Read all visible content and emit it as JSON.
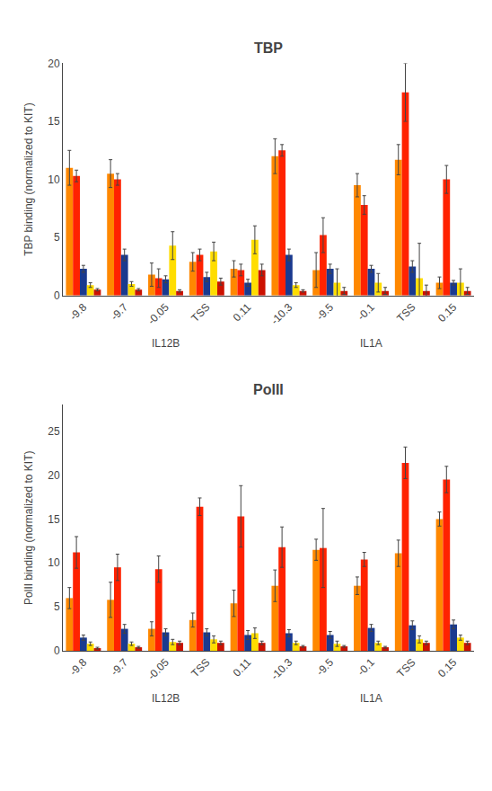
{
  "chart_data": [
    {
      "type": "bar",
      "title": "TBP",
      "ylabel": "TBP binding (normalized to KIT)",
      "categories": [
        "-9.8",
        "-9.7",
        "-0.05",
        "TSS",
        "0.11",
        "-10.3",
        "-9.5",
        "-0.1",
        "TSS",
        "0.15"
      ],
      "series": [
        {
          "color": "#ff8800",
          "values": [
            11.0,
            10.5,
            1.8,
            2.9,
            2.3,
            12.0,
            2.2,
            9.5,
            11.7,
            1.1
          ],
          "errors": [
            1.5,
            1.2,
            1.0,
            0.8,
            0.7,
            1.5,
            1.5,
            1.0,
            1.3,
            0.5
          ]
        },
        {
          "color": "#ff2200",
          "values": [
            10.3,
            10.0,
            1.5,
            3.5,
            2.2,
            12.5,
            5.2,
            7.8,
            17.5,
            10.0
          ],
          "errors": [
            0.5,
            0.5,
            0.8,
            0.5,
            0.5,
            0.5,
            1.5,
            0.8,
            2.5,
            1.2
          ]
        },
        {
          "color": "#1a3a8f",
          "values": [
            2.3,
            3.5,
            1.4,
            1.6,
            1.1,
            3.5,
            2.3,
            2.3,
            2.5,
            1.1
          ],
          "errors": [
            0.3,
            0.5,
            0.3,
            0.4,
            0.3,
            0.5,
            0.4,
            0.3,
            0.5,
            0.2
          ]
        },
        {
          "color": "#ffdd00",
          "values": [
            0.9,
            1.0,
            4.3,
            3.8,
            4.8,
            0.9,
            1.1,
            1.1,
            1.5,
            1.1
          ],
          "errors": [
            0.2,
            0.2,
            1.2,
            0.8,
            1.2,
            0.2,
            1.2,
            0.8,
            3.0,
            1.2
          ]
        },
        {
          "color": "#cc1100",
          "values": [
            0.5,
            0.5,
            0.4,
            1.2,
            2.2,
            0.4,
            0.4,
            0.4,
            0.4,
            0.4
          ],
          "errors": [
            0.1,
            0.1,
            0.1,
            0.3,
            0.5,
            0.1,
            0.3,
            0.3,
            0.5,
            0.3
          ]
        }
      ],
      "ylim": [
        0,
        20
      ],
      "yticks": [
        0,
        5,
        10,
        15,
        20
      ],
      "grid": false,
      "annotations": [
        {
          "text": "IL12B",
          "x": 2
        },
        {
          "text": "IL1A",
          "x": 7
        }
      ]
    },
    {
      "type": "bar",
      "title": "PolII",
      "ylabel": "PolII binding (normalized to KIT)",
      "categories": [
        "-9.8",
        "-9.7",
        "-0.05",
        "TSS",
        "0.11",
        "-10.3",
        "-9.5",
        "-0.1",
        "TSS",
        "0.15"
      ],
      "series": [
        {
          "color": "#ff8800",
          "values": [
            6.0,
            5.8,
            2.5,
            3.5,
            5.4,
            7.4,
            11.5,
            7.4,
            11.1,
            15.0
          ],
          "errors": [
            1.2,
            2.0,
            0.8,
            0.8,
            1.5,
            1.8,
            1.2,
            1.0,
            1.5,
            0.8
          ]
        },
        {
          "color": "#ff2200",
          "values": [
            11.2,
            9.5,
            9.3,
            16.4,
            15.3,
            11.8,
            11.7,
            10.4,
            21.4,
            19.5
          ],
          "errors": [
            1.8,
            1.5,
            1.5,
            1.0,
            3.5,
            2.3,
            4.5,
            0.8,
            1.8,
            1.5
          ]
        },
        {
          "color": "#1a3a8f",
          "values": [
            1.5,
            2.5,
            2.1,
            2.1,
            1.8,
            2.0,
            1.8,
            2.6,
            2.9,
            3.0
          ],
          "errors": [
            0.3,
            0.5,
            0.4,
            0.4,
            0.5,
            0.4,
            0.4,
            0.4,
            0.5,
            0.5
          ]
        },
        {
          "color": "#ffdd00",
          "values": [
            0.8,
            0.8,
            1.0,
            1.3,
            2.0,
            0.9,
            0.8,
            0.9,
            1.3,
            1.5
          ],
          "errors": [
            0.2,
            0.2,
            0.3,
            0.4,
            0.6,
            0.2,
            0.3,
            0.2,
            0.4,
            0.3
          ]
        },
        {
          "color": "#cc1100",
          "values": [
            0.3,
            0.4,
            0.9,
            0.9,
            0.9,
            0.5,
            0.5,
            0.4,
            0.9,
            0.9
          ],
          "errors": [
            0.1,
            0.1,
            0.2,
            0.2,
            0.2,
            0.1,
            0.1,
            0.1,
            0.2,
            0.2
          ]
        }
      ],
      "ylim": [
        0,
        28
      ],
      "yticks": [
        0,
        5,
        10,
        15,
        20,
        25
      ],
      "grid": false,
      "annotations": [
        {
          "text": "IL12B",
          "x": 2
        },
        {
          "text": "IL1A",
          "x": 7
        }
      ]
    }
  ]
}
